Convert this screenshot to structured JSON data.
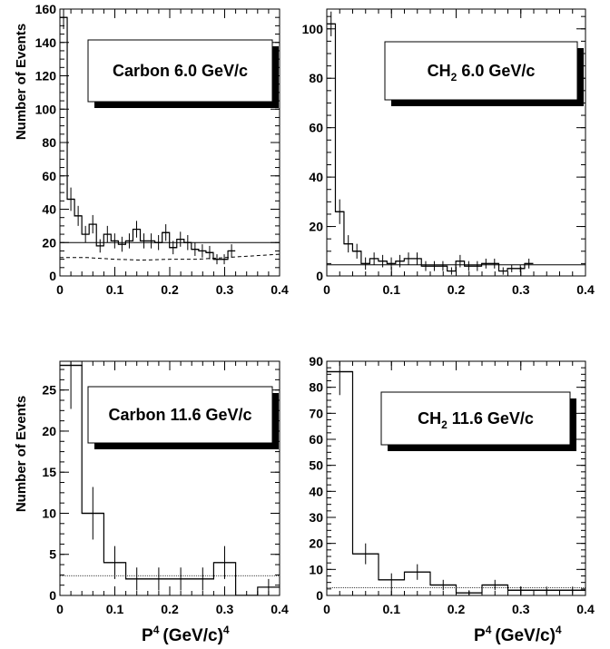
{
  "xlabel_main": "P",
  "xlabel_sup": "4",
  "xlabel_unit": "(GeV/c)",
  "xlabel_unit_sup": "4",
  "ylabel": "Number of Events",
  "chart_data": [
    {
      "type": "bar",
      "title": "Carbon 6.0 GeV/c",
      "xlim": [
        0,
        0.4
      ],
      "ylim": [
        0,
        160
      ],
      "yticks_major": [
        0,
        20,
        40,
        60,
        80,
        100,
        120,
        140,
        160
      ],
      "yticks_labels": [
        "0",
        "20",
        "40",
        "60",
        "80",
        "100",
        "120",
        "140",
        "160"
      ],
      "xticks_major": [
        0,
        0.1,
        0.2,
        0.3,
        0.4
      ],
      "xticks_labels": [
        "0",
        "0.1",
        "0.2",
        "0.3",
        "0.4"
      ],
      "bin_width": 0.0133,
      "values": [
        155,
        46,
        36,
        25,
        31,
        18,
        25,
        21,
        19,
        21,
        28,
        21,
        21,
        20,
        26,
        17,
        22,
        20,
        16,
        15,
        14,
        10,
        10,
        15
      ],
      "errors": [
        7,
        7,
        6,
        5,
        5.5,
        4,
        5,
        4.5,
        4.5,
        4.5,
        5,
        4.5,
        4.5,
        4.5,
        5,
        4,
        4.5,
        4.5,
        4,
        4,
        4,
        3,
        3,
        4
      ],
      "flat_line": 20,
      "dashed_curve": {
        "x": [
          0,
          0.02,
          0.05,
          0.1,
          0.15,
          0.2,
          0.25,
          0.3,
          0.35,
          0.4
        ],
        "y": [
          11,
          11,
          11,
          10,
          9.5,
          10,
          10,
          11,
          12,
          13
        ]
      }
    },
    {
      "type": "bar",
      "title_main": "CH",
      "title_sub": "2",
      "title_rest": " 6.0 GeV/c",
      "xlim": [
        0,
        0.4
      ],
      "ylim": [
        0,
        108
      ],
      "yticks_major": [
        0,
        20,
        40,
        60,
        80,
        100
      ],
      "yticks_labels": [
        "0",
        "20",
        "40",
        "60",
        "80",
        "100"
      ],
      "xticks_major": [
        0,
        0.1,
        0.2,
        0.3,
        0.4
      ],
      "xticks_labels": [
        "0",
        "0.1",
        "0.2",
        "0.3",
        "0.4"
      ],
      "bin_width": 0.0133,
      "values": [
        102,
        26,
        13,
        10,
        5,
        7,
        6,
        5,
        6,
        7,
        7,
        4,
        4,
        4,
        2,
        6,
        4,
        4,
        5,
        5,
        2,
        3,
        3,
        5
      ],
      "errors": [
        5,
        5,
        3.5,
        3,
        2.5,
        2.5,
        2.5,
        2.5,
        2.5,
        2.5,
        2.5,
        2,
        2,
        2,
        1.5,
        2.5,
        2,
        2,
        2,
        2,
        1.5,
        1.5,
        1.5,
        2
      ],
      "flat_line": 4.5
    },
    {
      "type": "bar",
      "title": "Carbon 11.6 GeV/c",
      "xlim": [
        0,
        0.4
      ],
      "ylim": [
        0,
        28.5
      ],
      "yticks_major": [
        0,
        5,
        10,
        15,
        20,
        25
      ],
      "yticks_labels": [
        "0",
        "5",
        "10",
        "15",
        "20",
        "25"
      ],
      "xticks_major": [
        0,
        0.1,
        0.2,
        0.3,
        0.4
      ],
      "xticks_labels": [
        "0",
        "0.1",
        "0.2",
        "0.3",
        "0.4"
      ],
      "bin_width": 0.04,
      "values": [
        28,
        10,
        4,
        2,
        2,
        2,
        2,
        4,
        0,
        1
      ],
      "errors": [
        5.3,
        3.2,
        2,
        1.4,
        1.4,
        1.4,
        1.4,
        2,
        0,
        1
      ],
      "flat_line": 2.4
    },
    {
      "type": "bar",
      "title_main": "CH",
      "title_sub": "2",
      "title_rest": " 11.6 GeV/c",
      "xlim": [
        0,
        0.4
      ],
      "ylim": [
        0,
        90
      ],
      "yticks_major": [
        0,
        10,
        20,
        30,
        40,
        50,
        60,
        70,
        80,
        90
      ],
      "yticks_labels": [
        "0",
        "10",
        "20",
        "30",
        "40",
        "50",
        "60",
        "70",
        "80",
        "90"
      ],
      "xticks_major": [
        0,
        0.1,
        0.2,
        0.3,
        0.4
      ],
      "xticks_labels": [
        "0",
        "0.1",
        "0.2",
        "0.3",
        "0.4"
      ],
      "bin_width": 0.04,
      "values": [
        86,
        16,
        6,
        9,
        4,
        1,
        4,
        2,
        2,
        2
      ],
      "errors": [
        9,
        4,
        2.5,
        3,
        2,
        1,
        2,
        1.4,
        1.4,
        1.4
      ],
      "flat_line": 3
    }
  ]
}
